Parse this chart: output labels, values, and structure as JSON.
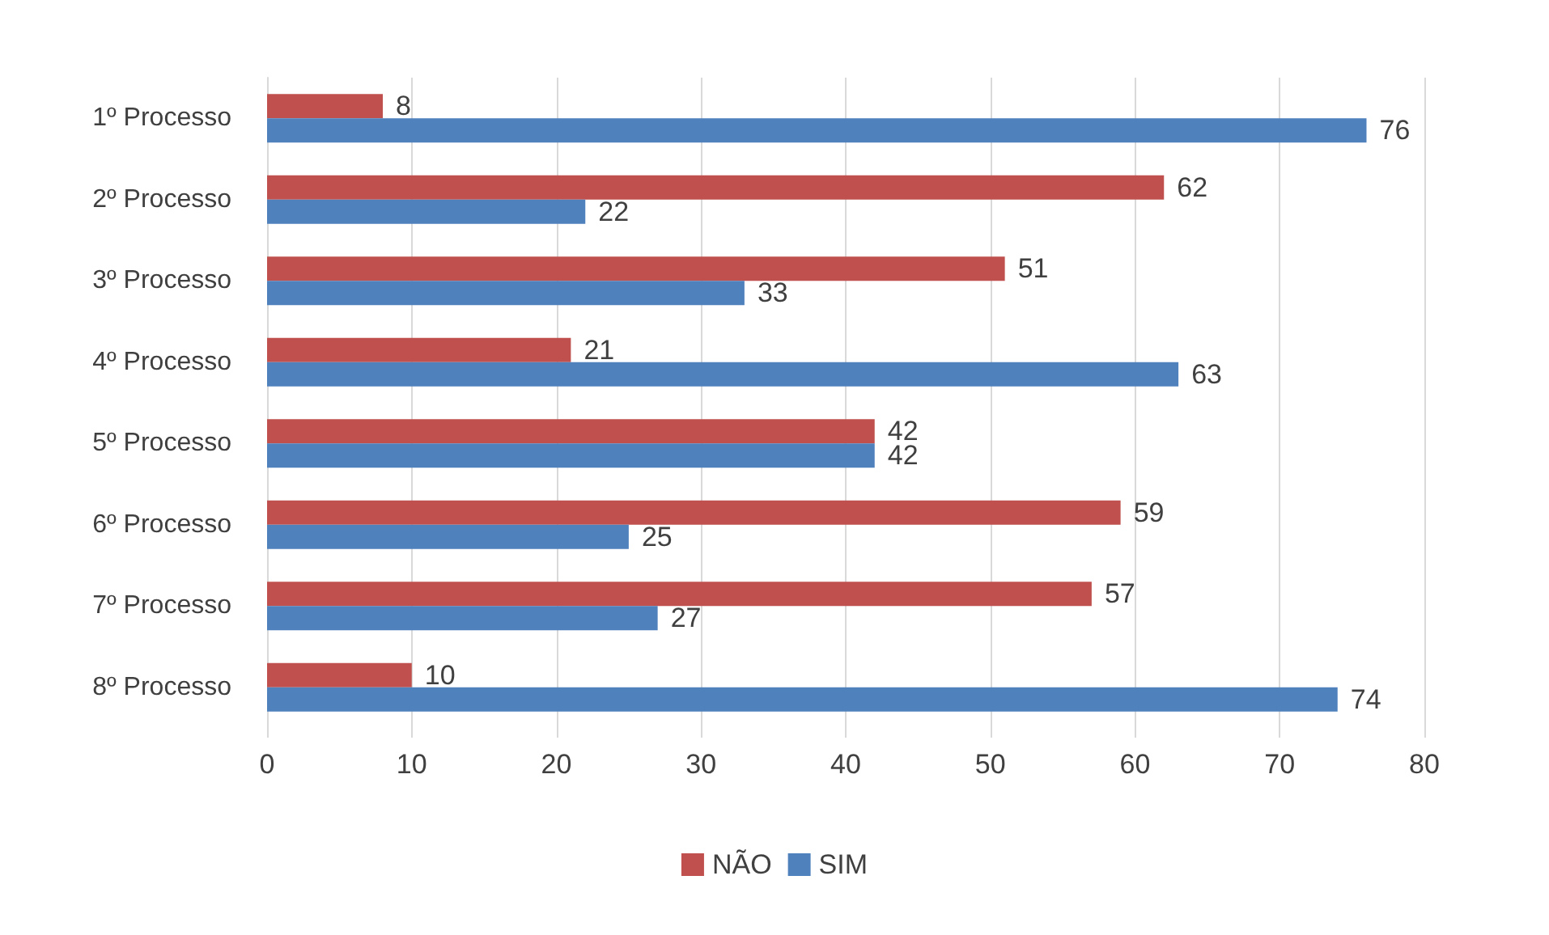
{
  "chart_data": {
    "type": "bar",
    "orientation": "horizontal",
    "categories": [
      "1º Processo",
      "2º Processo",
      "3º Processo",
      "4º Processo",
      "5º Processo",
      "6º Processo",
      "7º Processo",
      "8º Processo"
    ],
    "series": [
      {
        "name": "NÃO",
        "color": "#c0504d",
        "values": [
          8,
          62,
          51,
          21,
          42,
          59,
          57,
          10
        ]
      },
      {
        "name": "SIM",
        "color": "#4f81bd",
        "values": [
          76,
          22,
          33,
          63,
          42,
          25,
          27,
          74
        ]
      }
    ],
    "xlim": [
      0,
      80
    ],
    "xticks": [
      0,
      10,
      20,
      30,
      40,
      50,
      60,
      70,
      80
    ],
    "grid": "x",
    "legend": "bottom",
    "data_labels": true
  }
}
